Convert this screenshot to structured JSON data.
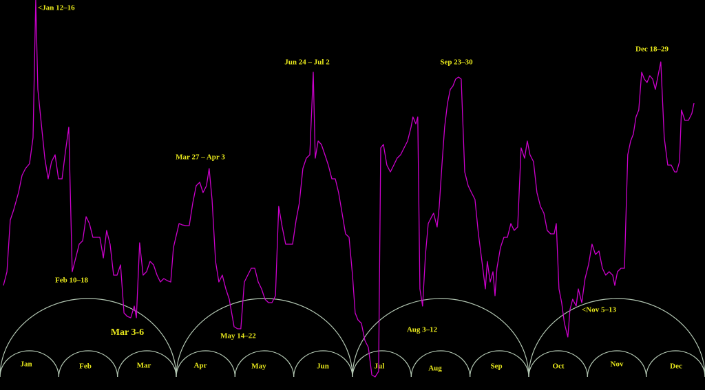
{
  "chart_data": {
    "type": "line",
    "color": "#cc00cc",
    "xlim": [
      0,
      365
    ],
    "ylim": [
      0,
      567
    ],
    "x": [
      1.8,
      3.6,
      5.3,
      7.1,
      9.6,
      11.4,
      13.2,
      15.3,
      17.1,
      18.5,
      19.6,
      21.4,
      23.2,
      24.9,
      26.7,
      28.5,
      30.3,
      32.1,
      33.9,
      35.6,
      37.4,
      39.2,
      41.0,
      42.8,
      44.6,
      46.3,
      48.1,
      49.9,
      51.7,
      53.5,
      55.2,
      57.0,
      58.8,
      60.6,
      62.4,
      64.2,
      65.9,
      67.7,
      69.5,
      70.6,
      72.3,
      74.1,
      75.9,
      77.7,
      79.5,
      81.3,
      83.0,
      84.8,
      86.6,
      88.4,
      89.8,
      92.7,
      94.4,
      96.2,
      98.0,
      99.8,
      101.6,
      103.4,
      105.1,
      106.9,
      108.3,
      109.8,
      111.6,
      113.3,
      115.1,
      116.9,
      118.7,
      121.2,
      123.0,
      124.7,
      126.5,
      128.3,
      130.1,
      131.9,
      133.7,
      135.4,
      137.2,
      139.0,
      140.8,
      142.6,
      144.3,
      146.1,
      147.9,
      149.7,
      151.5,
      153.3,
      155.0,
      156.8,
      158.6,
      160.4,
      162.2,
      163.2,
      164.7,
      166.4,
      168.2,
      170.0,
      171.8,
      173.6,
      175.3,
      177.1,
      178.9,
      180.7,
      182.5,
      183.9,
      185.3,
      187.1,
      188.9,
      190.7,
      192.5,
      194.2,
      196.0,
      197.1,
      198.5,
      200.3,
      202.1,
      203.9,
      205.6,
      207.4,
      209.2,
      211.0,
      212.8,
      213.8,
      215.3,
      216.3,
      217.4,
      218.8,
      220.3,
      221.7,
      223.5,
      224.5,
      226.3,
      227.4,
      228.8,
      230.2,
      231.7,
      233.1,
      234.5,
      235.9,
      237.4,
      238.8,
      240.6,
      242.4,
      244.1,
      245.9,
      247.7,
      249.5,
      251.3,
      252.3,
      253.8,
      255.2,
      256.3,
      257.3,
      259.1,
      260.9,
      262.7,
      264.5,
      266.2,
      268.0,
      269.8,
      271.6,
      273.0,
      274.4,
      276.2,
      278.0,
      279.8,
      281.6,
      283.3,
      285.1,
      286.9,
      288.0,
      289.4,
      290.8,
      292.2,
      294.0,
      295.1,
      296.5,
      298.3,
      299.4,
      301.2,
      302.9,
      304.7,
      306.5,
      308.3,
      310.1,
      311.9,
      313.6,
      315.4,
      317.2,
      318.3,
      319.7,
      321.5,
      323.3,
      325.0,
      326.5,
      327.9,
      329.3,
      330.7,
      332.2,
      333.6,
      335.0,
      336.4,
      337.9,
      339.3,
      340.7,
      342.1,
      343.9,
      345.7,
      347.5,
      349.3,
      350.3,
      351.8,
      352.8,
      354.6,
      356.4,
      358.2,
      359.3
    ],
    "values": [
      152,
      172,
      247,
      262,
      287,
      312,
      322,
      329,
      367,
      567,
      437,
      387,
      337,
      307,
      332,
      342,
      307,
      307,
      347,
      382,
      172,
      192,
      212,
      217,
      252,
      242,
      222,
      222,
      222,
      192,
      232,
      212,
      167,
      167,
      182,
      112,
      107,
      105,
      122,
      105,
      214,
      167,
      172,
      187,
      182,
      167,
      157,
      162,
      159,
      157,
      207,
      242,
      240,
      239,
      239,
      272,
      297,
      302,
      287,
      297,
      322,
      277,
      187,
      157,
      167,
      147,
      132,
      92,
      89,
      89,
      157,
      167,
      177,
      177,
      157,
      147,
      132,
      127,
      127,
      137,
      267,
      237,
      212,
      212,
      212,
      247,
      272,
      322,
      337,
      342,
      462,
      337,
      362,
      357,
      342,
      327,
      307,
      307,
      287,
      257,
      227,
      222,
      167,
      112,
      102,
      97,
      72,
      62,
      22,
      19,
      27,
      352,
      357,
      327,
      317,
      327,
      337,
      342,
      352,
      362,
      382,
      397,
      387,
      397,
      147,
      122,
      197,
      242,
      252,
      257,
      237,
      267,
      327,
      382,
      417,
      437,
      442,
      452,
      455,
      452,
      317,
      297,
      287,
      277,
      227,
      187,
      147,
      187,
      157,
      172,
      137,
      177,
      207,
      222,
      222,
      242,
      232,
      237,
      352,
      337,
      362,
      342,
      332,
      287,
      267,
      257,
      232,
      227,
      227,
      242,
      147,
      127,
      97,
      77,
      117,
      132,
      122,
      147,
      127,
      162,
      182,
      212,
      197,
      202,
      177,
      167,
      172,
      167,
      152,
      172,
      177,
      177,
      342,
      362,
      372,
      397,
      407,
      462,
      452,
      447,
      457,
      452,
      437,
      457,
      477,
      367,
      327,
      327,
      317,
      317,
      332,
      407,
      392,
      392,
      402,
      417
    ],
    "annotations": [
      "<Jan 12–16",
      "Feb 10–18",
      "Mar 3-6",
      "Mar 27 – Apr 3",
      "May 14–22",
      "Jun 24 – Jul 2",
      "Aug 3–12",
      "Sep 23–30",
      "<Nov 5–13",
      "Dec 18–29"
    ],
    "categories": [
      "Jan",
      "Feb",
      "Mar",
      "Apr",
      "May",
      "Jun",
      "Jul",
      "Aug",
      "Sep",
      "Oct",
      "Nov",
      "Dec"
    ]
  }
}
